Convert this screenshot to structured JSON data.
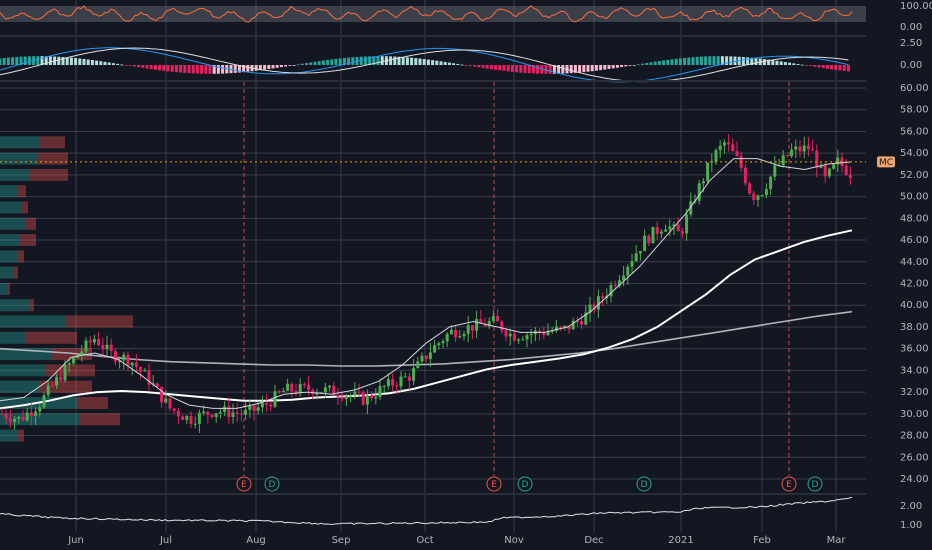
{
  "colors": {
    "background": "#131722",
    "grid": "#3a3e4a",
    "up": "#26a69a",
    "up_body": "#4caf50",
    "down": "#ef5350",
    "down_body": "#e91e63",
    "price_line": "#ff9800",
    "rsi_line": "#ff6d3a",
    "macd_line": "#2196f3",
    "signal_line": "#e0e0e0",
    "ma_fast": "#d1d4dc",
    "ma_mid": "#ffffff",
    "ma_slow": "#b0b3bb",
    "event_earnings": "#ef5350",
    "event_dividend": "#26a69a"
  },
  "rsi_panel": {
    "ticks": [
      "100.00",
      "0.00"
    ]
  },
  "macd_panel": {
    "ticks": [
      "2.50",
      "0.00"
    ]
  },
  "bottom_panel": {
    "ticks": [
      "2.00",
      "1.00"
    ]
  },
  "price_label": "MC",
  "events": [
    {
      "type": "E",
      "date": "Jul 29"
    },
    {
      "type": "D",
      "date": "Aug 3"
    },
    {
      "type": "E",
      "date": "Oct 27"
    },
    {
      "type": "D",
      "date": "Nov 3"
    },
    {
      "type": "D",
      "date": "Dec 21"
    },
    {
      "type": "E",
      "date": "Feb 10"
    },
    {
      "type": "D",
      "date": "Feb 14"
    }
  ],
  "chart_data": {
    "type": "candlestick",
    "x_labels": [
      "Jun",
      "Jul",
      "Aug",
      "Sep",
      "Oct",
      "Nov",
      "Dec",
      "2021",
      "Feb",
      "Mar"
    ],
    "y_ticks": [
      "60.00",
      "58.00",
      "56.00",
      "54.00",
      "52.00",
      "50.00",
      "48.00",
      "46.00",
      "44.00",
      "42.00",
      "40.00",
      "38.00",
      "36.00",
      "34.00",
      "32.00",
      "30.00",
      "28.00",
      "26.00",
      "24.00"
    ],
    "ylim": [
      22.5,
      61.0
    ],
    "last_price": 53.2,
    "moving_averages": [
      {
        "period": "fast",
        "values": [
          31.2,
          31.5,
          33.0,
          35.2,
          35.6,
          35.0,
          33.5,
          31.8,
          30.8,
          30.5,
          30.5,
          31.0,
          31.8,
          32.0,
          31.8,
          32.2,
          33.0,
          34.5,
          36.5,
          38.0,
          38.5,
          38.0,
          37.5,
          37.5,
          38.0,
          39.5,
          41.5,
          43.5,
          46.0,
          48.5,
          51.5,
          53.5,
          53.5,
          52.8,
          52.5,
          53.0,
          53.2
        ]
      },
      {
        "period": "mid",
        "values": [
          30.5,
          30.8,
          31.2,
          31.7,
          32.0,
          32.1,
          32.0,
          31.8,
          31.6,
          31.4,
          31.2,
          31.2,
          31.3,
          31.5,
          31.6,
          31.7,
          31.9,
          32.3,
          32.9,
          33.5,
          34.1,
          34.5,
          34.8,
          35.1,
          35.5,
          36.1,
          36.9,
          38.0,
          39.5,
          41.0,
          42.8,
          44.2,
          45.0,
          45.8,
          46.4,
          46.9
        ]
      },
      {
        "period": "slow",
        "values": [
          36.0,
          35.8,
          35.6,
          35.3,
          35.0,
          34.8,
          34.7,
          34.6,
          34.5,
          34.5,
          34.4,
          34.4,
          34.5,
          34.6,
          34.8,
          35.0,
          35.3,
          35.6,
          36.0,
          36.5,
          37.0,
          37.5,
          38.0,
          38.5,
          39.0,
          39.4
        ]
      }
    ],
    "volume_profile": [
      {
        "price": 55.0,
        "up": 40,
        "down": 25
      },
      {
        "price": 53.5,
        "up": 38,
        "down": 30
      },
      {
        "price": 52.0,
        "up": 30,
        "down": 38
      },
      {
        "price": 50.5,
        "up": 18,
        "down": 8
      },
      {
        "price": 49.0,
        "up": 22,
        "down": 6
      },
      {
        "price": 47.5,
        "up": 26,
        "down": 10
      },
      {
        "price": 46.0,
        "up": 20,
        "down": 16
      },
      {
        "price": 44.5,
        "up": 18,
        "down": 6
      },
      {
        "price": 43.0,
        "up": 14,
        "down": 4
      },
      {
        "price": 41.5,
        "up": 8,
        "down": 2
      },
      {
        "price": 40.0,
        "up": 30,
        "down": 4
      },
      {
        "price": 38.5,
        "up": 65,
        "down": 68
      },
      {
        "price": 37.0,
        "up": 25,
        "down": 52
      },
      {
        "price": 35.5,
        "up": 52,
        "down": 40
      },
      {
        "price": 34.0,
        "up": 45,
        "down": 50
      },
      {
        "price": 32.5,
        "up": 40,
        "down": 52
      },
      {
        "price": 31.0,
        "up": 78,
        "down": 30
      },
      {
        "price": 29.5,
        "up": 80,
        "down": 40
      },
      {
        "price": 28.0,
        "up": 18,
        "down": 6
      }
    ]
  }
}
